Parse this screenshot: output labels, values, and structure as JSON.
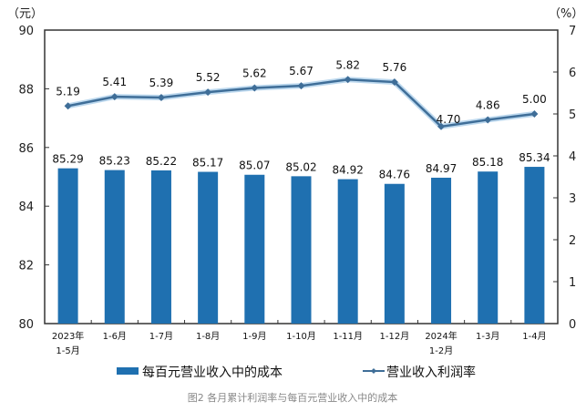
{
  "chart_data": {
    "type": "bar+line",
    "title": "图2 各月累计利润率与每百元营业收入中的成本",
    "left_unit": "（元）",
    "right_unit": "（%）",
    "categories": [
      [
        "2023年",
        "1-5月"
      ],
      [
        "1-6月"
      ],
      [
        "1-7月"
      ],
      [
        "1-8月"
      ],
      [
        "1-9月"
      ],
      [
        "1-10月"
      ],
      [
        "1-11月"
      ],
      [
        "1-12月"
      ],
      [
        "2024年",
        "1-2月"
      ],
      [
        "1-3月"
      ],
      [
        "1-4月"
      ]
    ],
    "left_ylim": [
      80,
      90
    ],
    "left_ticks": [
      "80",
      "82",
      "84",
      "86",
      "88",
      "90"
    ],
    "right_ylim": [
      0,
      7
    ],
    "right_ticks": [
      "0",
      "1",
      "2",
      "3",
      "4",
      "5",
      "6",
      "7"
    ],
    "series": [
      {
        "name": "每百元营业收入中的成本",
        "type": "bar",
        "axis": "left",
        "color": "#1f70b0",
        "values": [
          85.29,
          85.23,
          85.22,
          85.17,
          85.07,
          85.02,
          84.92,
          84.76,
          84.97,
          85.18,
          85.34
        ],
        "labels": [
          "85.29",
          "85.23",
          "85.22",
          "85.17",
          "85.07",
          "85.02",
          "84.92",
          "84.76",
          "84.97",
          "85.18",
          "85.34"
        ]
      },
      {
        "name": "营业收入利润率",
        "type": "line",
        "axis": "right",
        "color": "#3f6e98",
        "values": [
          5.19,
          5.41,
          5.39,
          5.52,
          5.62,
          5.67,
          5.82,
          5.76,
          4.7,
          4.86,
          5.0
        ],
        "labels": [
          "5.19",
          "5.41",
          "5.39",
          "5.52",
          "5.62",
          "5.67",
          "5.82",
          "5.76",
          "4.70",
          "4.86",
          "5.00"
        ]
      }
    ],
    "legend_position": "bottom",
    "grid": false
  }
}
